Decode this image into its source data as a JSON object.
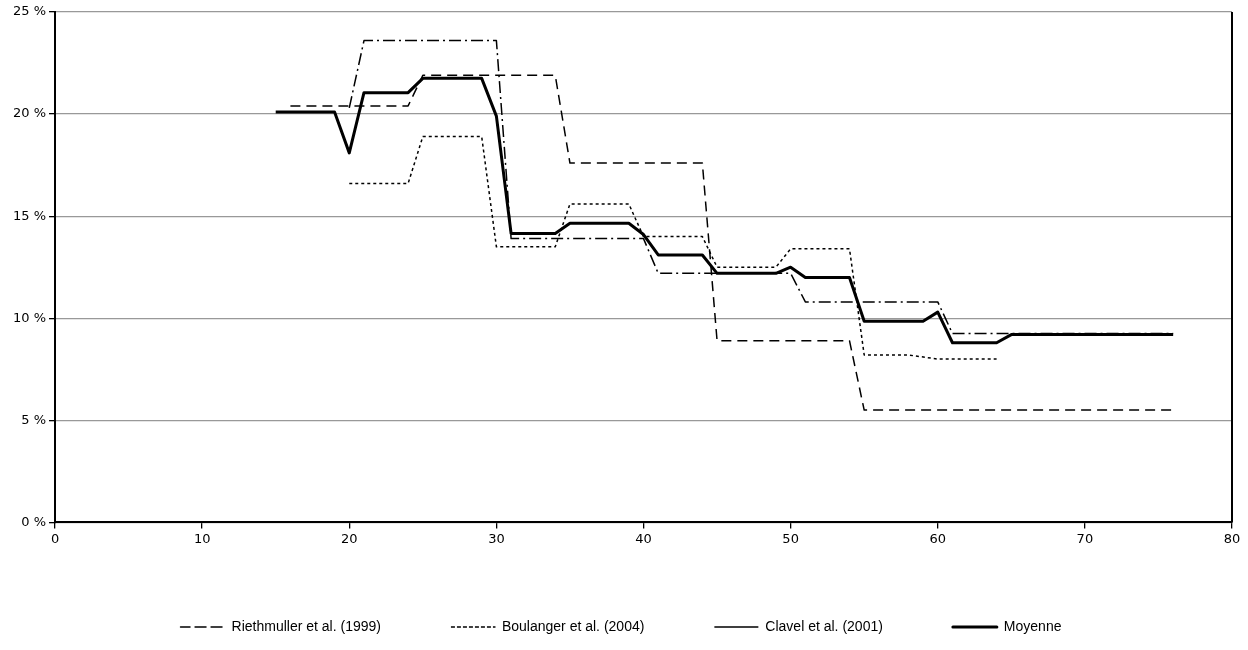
{
  "chart_data": {
    "type": "line",
    "xlim": [
      0,
      80
    ],
    "xticks": [
      0,
      10,
      20,
      30,
      40,
      50,
      60,
      70,
      80
    ],
    "ylim": [
      0,
      25
    ],
    "yticks": [
      {
        "value": 0,
        "label": "0 %"
      },
      {
        "value": 5,
        "label": "5 %"
      },
      {
        "value": 10,
        "label": "10 %"
      },
      {
        "value": 15,
        "label": "15 %"
      },
      {
        "value": 20,
        "label": "20 %"
      },
      {
        "value": 25,
        "label": "25 %"
      }
    ],
    "grid": "y",
    "legend": "bottom",
    "marker": "none",
    "series": [
      {
        "name": "Riethmuller et al. (1999)",
        "color": "#000000",
        "line_style": "dashed",
        "x": [
          16,
          24,
          25,
          34,
          35,
          44,
          45,
          54,
          55,
          76
        ],
        "values": [
          20.4,
          20.4,
          21.9,
          21.9,
          17.6,
          17.6,
          8.9,
          8.9,
          5.5,
          5.5
        ]
      },
      {
        "name": "Boulanger et al. (2004)",
        "color": "#000000",
        "line_style": "dotted",
        "x": [
          20,
          24,
          25,
          29,
          30,
          34,
          35,
          39,
          40,
          44,
          45,
          49,
          50,
          54,
          55,
          58,
          60,
          64
        ],
        "values": [
          16.6,
          16.6,
          18.9,
          18.9,
          13.5,
          13.5,
          15.6,
          15.6,
          14.0,
          14.0,
          12.5,
          12.5,
          13.4,
          13.4,
          8.2,
          8.2,
          8.0,
          8.0
        ]
      },
      {
        "name": "Clavel et al. (2001)",
        "color": "#000000",
        "line_style": "dashdot",
        "x": [
          20,
          21,
          30,
          31,
          40,
          41,
          50,
          51,
          60,
          61,
          76
        ],
        "values": [
          20.3,
          23.6,
          23.6,
          13.9,
          13.9,
          12.2,
          12.2,
          10.8,
          10.8,
          9.25,
          9.25
        ]
      },
      {
        "name": "Moyenne",
        "color": "#000000",
        "line_style": "solid",
        "x": [
          15,
          19,
          20,
          21,
          24,
          25,
          29,
          30,
          31,
          34,
          35,
          39,
          40,
          41,
          44,
          45,
          49,
          50,
          51,
          54,
          55,
          59,
          60,
          61,
          64,
          65,
          76
        ],
        "values": [
          20.1,
          20.1,
          18.1,
          21.05,
          21.05,
          21.75,
          21.75,
          19.9,
          14.15,
          14.15,
          14.65,
          14.65,
          14.1,
          13.1,
          13.1,
          12.2,
          12.2,
          12.5,
          12.0,
          12.0,
          9.85,
          9.85,
          10.3,
          8.8,
          8.8,
          9.2,
          9.2
        ]
      }
    ]
  }
}
